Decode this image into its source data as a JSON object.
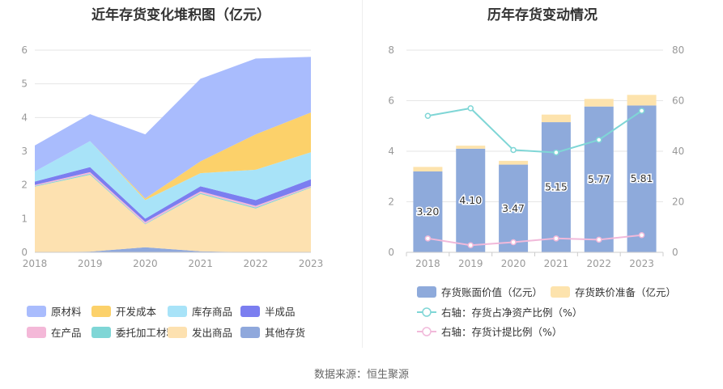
{
  "source": "数据来源：恒生聚源",
  "chart_data": [
    {
      "type": "area",
      "stacked": true,
      "title": "近年存货变化堆积图（亿元）",
      "x": [
        "2018",
        "2019",
        "2020",
        "2021",
        "2022",
        "2023"
      ],
      "ylim": [
        0,
        6
      ],
      "yticks": [
        "0",
        "1",
        "2",
        "3",
        "4",
        "5",
        "6"
      ],
      "grid": true,
      "legend_position": "bottom",
      "series": [
        {
          "name": "其他存货",
          "color": "#8fa8dc",
          "values": [
            0.0,
            0.02,
            0.15,
            0.03,
            0.0,
            0.0
          ]
        },
        {
          "name": "发出商品",
          "color": "#fde1b0",
          "values": [
            1.95,
            2.28,
            0.68,
            1.7,
            1.3,
            1.92
          ]
        },
        {
          "name": "委托加工材料",
          "color": "#7fd6d6",
          "values": [
            0.02,
            0.03,
            0.02,
            0.03,
            0.03,
            0.02
          ]
        },
        {
          "name": "在产品",
          "color": "#f4b8d8",
          "values": [
            0.03,
            0.05,
            0.05,
            0.05,
            0.05,
            0.03
          ]
        },
        {
          "name": "半成品",
          "color": "#7b7ef0",
          "values": [
            0.1,
            0.15,
            0.1,
            0.15,
            0.17,
            0.2
          ]
        },
        {
          "name": "库存商品",
          "color": "#a8e3f8",
          "values": [
            0.3,
            0.77,
            0.55,
            0.39,
            0.9,
            0.8
          ]
        },
        {
          "name": "开发成本",
          "color": "#fcd16a",
          "values": [
            0.0,
            0.0,
            0.05,
            0.35,
            1.05,
            1.18
          ]
        },
        {
          "name": "原材料",
          "color": "#a9bcfd",
          "values": [
            0.77,
            0.8,
            1.9,
            2.45,
            2.25,
            1.65
          ]
        }
      ],
      "legend_order": [
        "原材料",
        "开发成本",
        "库存商品",
        "半成品",
        "在产品",
        "委托加工材料",
        "发出商品",
        "其他存货"
      ]
    },
    {
      "type": "bar",
      "stacked": true,
      "title": "历年存货变动情况",
      "categories": [
        "2018",
        "2019",
        "2020",
        "2021",
        "2022",
        "2023"
      ],
      "ylim": [
        0,
        8
      ],
      "yticks": [
        "0",
        "2",
        "4",
        "6",
        "8"
      ],
      "y2lim": [
        0,
        80
      ],
      "y2ticks": [
        "0",
        "20",
        "40",
        "60",
        "80"
      ],
      "grid": true,
      "legend_position": "bottom",
      "series": [
        {
          "name": "存货账面价值（亿元）",
          "type": "bar",
          "axis": "left",
          "color": "#8eaadb",
          "values": [
            3.2,
            4.1,
            3.47,
            5.15,
            5.77,
            5.81
          ],
          "labels": [
            "3.20",
            "4.10",
            "3.47",
            "5.15",
            "5.77",
            "5.81"
          ]
        },
        {
          "name": "存货跌价准备（亿元）",
          "type": "bar",
          "axis": "left",
          "color": "#fde3ad",
          "values": [
            0.18,
            0.12,
            0.15,
            0.3,
            0.3,
            0.42
          ]
        },
        {
          "name": "右轴：存货占净资产比例（%）",
          "type": "line",
          "axis": "right",
          "color": "#7fd6d6",
          "values": [
            54,
            57,
            40.5,
            39.5,
            44.5,
            56
          ]
        },
        {
          "name": "右轴：存货计提比例（%）",
          "type": "line",
          "axis": "right",
          "color": "#f1b9da",
          "values": [
            5.5,
            2.8,
            4.0,
            5.5,
            5.0,
            6.8
          ]
        }
      ]
    }
  ]
}
